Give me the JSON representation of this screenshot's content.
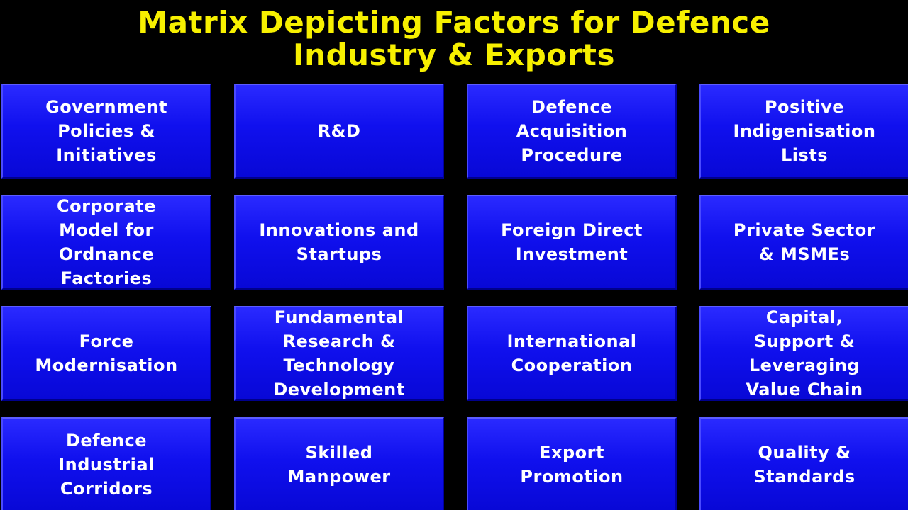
{
  "title": {
    "line1": "Matrix Depicting Factors for Defence",
    "line2": "Industry & Exports"
  },
  "matrix": {
    "cells": [
      "Government\nPolicies &\nInitiatives",
      "R&D",
      "Defence\nAcquisition\nProcedure",
      "Positive\nIndigenisation\nLists",
      "Corporate\nModel for\nOrdnance\nFactories",
      "Innovations and\nStartups",
      "Foreign Direct\nInvestment",
      "Private Sector\n& MSMEs",
      "Force\nModernisation",
      "Fundamental\nResearch &\nTechnology\nDevelopment",
      "International\nCooperation",
      "Capital,\nSupport &\nLeveraging\nValue Chain",
      "Defence\nIndustrial\nCorridors",
      "Skilled\nManpower",
      "Export\nPromotion",
      "Quality &\nStandards"
    ]
  }
}
